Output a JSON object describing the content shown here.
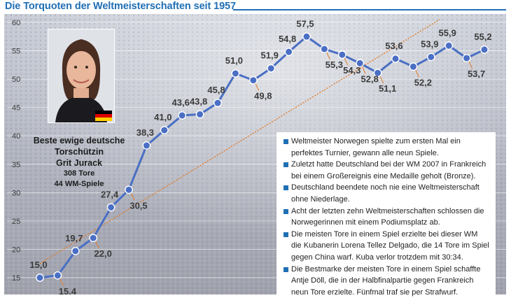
{
  "title": "Die Torquoten der Weltmeisterschaften seit 1957",
  "accent_color": "#1f6fb5",
  "chart_data": {
    "type": "line",
    "title": "Die Torquoten der Weltmeisterschaften seit 1957",
    "ylim": [
      10,
      60
    ],
    "y_ticks": [
      15,
      20,
      25,
      30,
      35,
      40,
      45,
      50,
      55,
      60
    ],
    "grid": true,
    "series": [
      {
        "values": [
          15.0,
          15.4,
          19.7,
          22.0,
          27.4,
          30.5,
          38.3,
          41.0,
          43.6,
          43.8,
          45.8,
          51.0,
          49.8,
          51.9,
          54.8,
          57.5,
          55.3,
          54.3,
          52.8,
          51.1,
          53.6,
          52.2,
          53.9,
          55.9,
          53.7,
          55.2
        ],
        "labels": [
          "15,0",
          "15,4",
          "19,7",
          "22,0",
          "27,4",
          "30,5",
          "38,3",
          "41,0",
          "43,6",
          "43,8",
          "45,8",
          "51,0",
          "49,8",
          "51,9",
          "54,8",
          "57,5",
          "55,3",
          "54,3",
          "52,8",
          "51,1",
          "53,6",
          "52,2",
          "53,9",
          "55,9",
          "53,7",
          "55,2"
        ],
        "color": "#4a6fc4"
      }
    ],
    "trend_line": {
      "from": 17.5,
      "to": 60.5,
      "color": "#e07b2a",
      "style": "dotted"
    }
  },
  "portrait": {
    "flag": "Germany",
    "caption_lines": [
      "Beste ewige deutsche",
      "Torschützin",
      "Grit Jurack"
    ],
    "stats_lines": [
      "308 Tore",
      "44 WM-Spiele"
    ]
  },
  "notes": [
    "Weltmeister Norwegen spielte zum ersten Mal ein perfektes Turnier, gewann alle neun Spiele.",
    "Zuletzt hatte Deutschland bei der WM 2007 in Frankreich bei einem Großereignis eine Medaille geholt (Bronze).",
    "Deutschland beendete noch nie eine Weltmeisterschaft ohne Niederlage.",
    "Acht der letzten zehn Weltmeisterschaften schlossen die Norwegerinnen mit einem Podiumsplatz ab.",
    "Die meisten Tore in einem Spiel erzielte bei dieser WM die Kubanerin Lorena Tellez Delgado, die 14 Tore im Spiel gegen China warf. Kuba verlor trotzdem mit 30:34.",
    "Die Bestmarke der meisten Tore in einem Spiel schaffte Antje Döll, die in der Halbfinalpartie gegen Frankreich neun Tore erzielte. Fünfmal traf sie per Strafwurf."
  ]
}
